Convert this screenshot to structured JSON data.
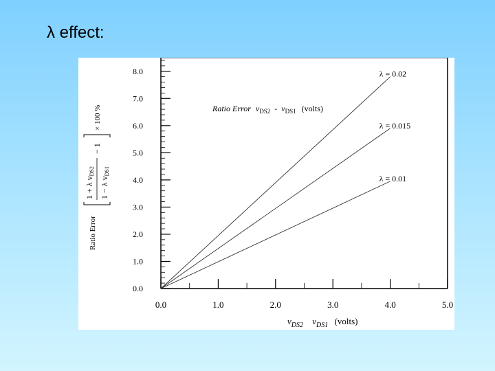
{
  "slide": {
    "title": "λ effect:"
  },
  "chart_data": {
    "type": "line",
    "title": "",
    "annotation": {
      "main": "Ratio Error",
      "v1": "v",
      "v1_sub": "DS2",
      "dash": "-",
      "v2": "v",
      "v2_sub": "DS1",
      "unit": "(volts)"
    },
    "xlabel": {
      "v1": "v",
      "v1_sub": "DS2",
      "v2": "v",
      "v2_sub": "DS1",
      "unit": "(volts)"
    },
    "ylabel": {
      "prefix": "Ratio Error",
      "num": "1 + λ v",
      "num_sub": "DS2",
      "den": "1 − λ v",
      "den_sub": "DS1",
      "minus_one": "− 1",
      "times": "× 100 %"
    },
    "xlim": [
      0,
      5
    ],
    "ylim": [
      0,
      8.5
    ],
    "x_ticks": [
      0,
      1,
      2,
      3,
      4,
      5
    ],
    "x_tick_labels": [
      "0.0",
      "1.0",
      "2.0",
      "3.0",
      "4.0",
      "5.0"
    ],
    "y_ticks": [
      0,
      1,
      2,
      3,
      4,
      5,
      6,
      7,
      8
    ],
    "y_tick_labels": [
      "0.0",
      "1.0",
      "2.0",
      "3.0",
      "4.0",
      "5.0",
      "6.0",
      "7.0",
      "8.0"
    ],
    "grid": false,
    "series": [
      {
        "name": "λ = 0.02",
        "x": [
          0,
          4.0
        ],
        "y": [
          0,
          7.8
        ]
      },
      {
        "name": "λ = 0.015",
        "x": [
          0,
          4.0
        ],
        "y": [
          0,
          5.9
        ]
      },
      {
        "name": "λ = 0.01",
        "x": [
          0,
          4.0
        ],
        "y": [
          0,
          3.95
        ]
      }
    ],
    "line_color": "#333333"
  }
}
